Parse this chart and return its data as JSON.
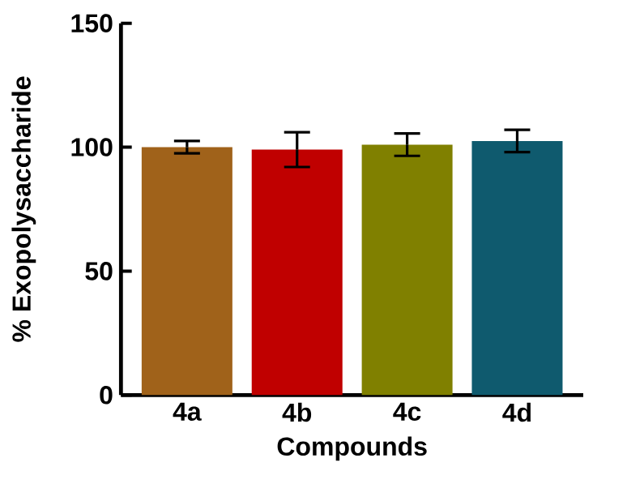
{
  "chart_data": {
    "type": "bar",
    "xlabel": "Compounds",
    "ylabel": "% Exopolysaccharide",
    "categories": [
      "4a",
      "4b",
      "4c",
      "4d"
    ],
    "values": [
      100,
      99,
      101,
      102.5
    ],
    "errors": [
      2.5,
      7,
      4.5,
      4.5
    ],
    "colors": [
      "#a0621a",
      "#c00000",
      "#808000",
      "#0f5a6e"
    ],
    "ylim": [
      0,
      150
    ],
    "yticks": [
      0,
      50,
      100,
      150
    ],
    "grid": false
  }
}
